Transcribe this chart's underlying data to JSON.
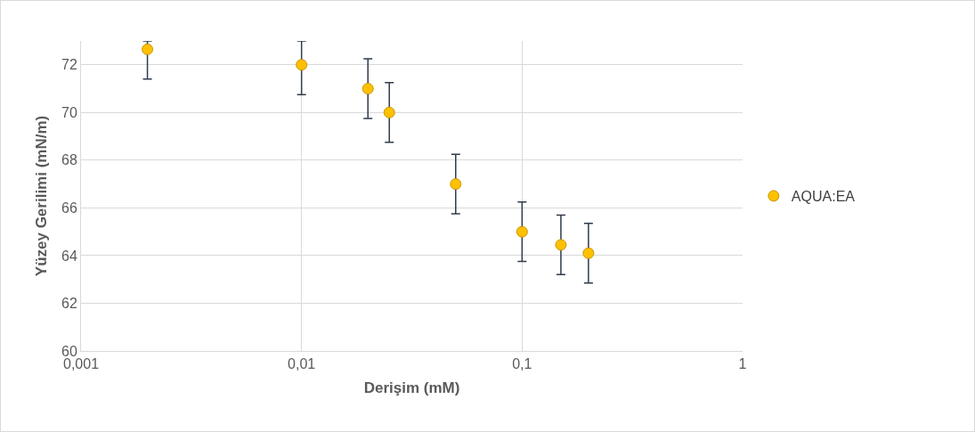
{
  "chart_data": {
    "type": "scatter",
    "xlabel": "Derişim (mM)",
    "ylabel": "Yüzey Gerilimi (mN/m)",
    "log": "x",
    "xlim": [
      0.001,
      1
    ],
    "xticks": [
      {
        "value": 0.001,
        "label": "0,001"
      },
      {
        "value": 0.01,
        "label": "0,01"
      },
      {
        "value": 0.1,
        "label": "0,1"
      },
      1
    ],
    "ylim": [
      60,
      73
    ],
    "yticks": [
      60,
      62,
      64,
      66,
      68,
      70,
      72
    ],
    "grid": true,
    "legend": "right",
    "marker": "circle",
    "x": [
      0.002,
      0.01,
      0.02,
      0.025,
      0.05,
      0.1,
      0.15,
      0.2
    ],
    "series": [
      {
        "name": "AQUA:EA",
        "color": "#ffc000",
        "values": [
          72.65,
          72,
          71,
          70,
          67,
          65,
          64.45,
          64.1
        ],
        "errors": [
          [
            71.4,
            73
          ],
          [
            70.75,
            73
          ],
          1.25,
          1.25,
          1.25,
          1.25,
          1.25,
          1.25
        ]
      }
    ]
  }
}
